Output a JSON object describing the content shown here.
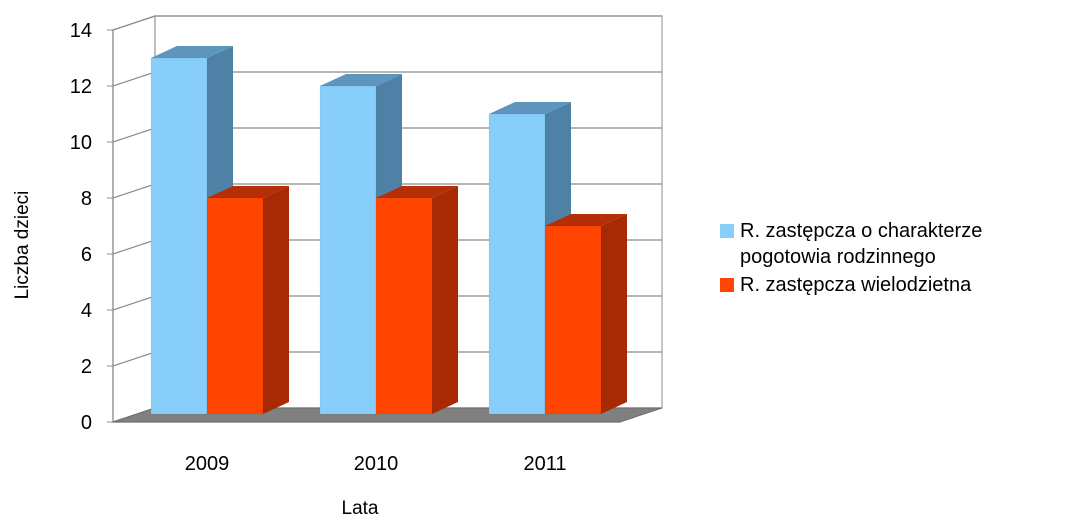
{
  "chart_data": {
    "type": "bar",
    "categories": [
      "2009",
      "2010",
      "2011"
    ],
    "series": [
      {
        "name": "R. zastępcza o charakterze pogotowia rodzinnego",
        "values": [
          13,
          12,
          11
        ],
        "color": "#87CEFA",
        "side_color": "#4F81A6",
        "top_color": "#5E95BD"
      },
      {
        "name": "R. zastępcza wielodzietna",
        "values": [
          8,
          8,
          7
        ],
        "color": "#FF4500",
        "side_color": "#A72A05",
        "top_color": "#B52E06"
      }
    ],
    "xlabel": "Lata",
    "ylabel": "Liczba dzieci",
    "ylim": [
      0,
      14
    ],
    "yticks": [
      "0",
      "2",
      "4",
      "6",
      "8",
      "10",
      "12",
      "14"
    ],
    "grid": true,
    "legend_position": "right",
    "floor_color": "#808080"
  }
}
